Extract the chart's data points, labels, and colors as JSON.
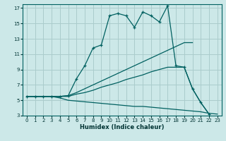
{
  "xlabel": "Humidex (Indice chaleur)",
  "bg_color": "#cce8e8",
  "grid_color": "#aacccc",
  "line_color": "#006060",
  "xlim": [
    -0.5,
    23.5
  ],
  "ylim": [
    3,
    17.5
  ],
  "xticks": [
    0,
    1,
    2,
    3,
    4,
    5,
    6,
    7,
    8,
    9,
    10,
    11,
    12,
    13,
    14,
    15,
    16,
    17,
    18,
    19,
    20,
    21,
    22,
    23
  ],
  "yticks": [
    3,
    5,
    7,
    9,
    11,
    13,
    15,
    17
  ],
  "line_max_x": [
    0,
    1,
    2,
    3,
    4,
    5,
    6,
    7,
    8,
    9,
    10,
    11,
    12,
    13,
    14,
    15,
    16,
    17,
    18,
    19,
    20,
    21,
    22
  ],
  "line_max_y": [
    5.5,
    5.5,
    5.5,
    5.5,
    5.5,
    5.6,
    7.8,
    9.5,
    11.8,
    12.2,
    16.0,
    16.3,
    16.0,
    14.5,
    16.5,
    16.0,
    15.2,
    17.3,
    9.5,
    9.3,
    6.5,
    4.7,
    3.2
  ],
  "line_upper_x": [
    0,
    1,
    2,
    3,
    4,
    5,
    6,
    7,
    8,
    9,
    10,
    11,
    12,
    13,
    14,
    15,
    16,
    17,
    18,
    19,
    20
  ],
  "line_upper_y": [
    5.5,
    5.5,
    5.5,
    5.5,
    5.5,
    5.6,
    6.0,
    6.5,
    7.0,
    7.5,
    8.0,
    8.5,
    9.0,
    9.5,
    10.0,
    10.5,
    11.0,
    11.5,
    12.0,
    12.5,
    12.5
  ],
  "line_lower_x": [
    0,
    1,
    2,
    3,
    4,
    5,
    6,
    7,
    8,
    9,
    10,
    11,
    12,
    13,
    14,
    15,
    16,
    17,
    18,
    19,
    20,
    21,
    22
  ],
  "line_lower_y": [
    5.5,
    5.5,
    5.5,
    5.5,
    5.5,
    5.5,
    5.8,
    6.0,
    6.3,
    6.7,
    7.0,
    7.3,
    7.7,
    8.0,
    8.3,
    8.7,
    9.0,
    9.3,
    9.3,
    9.3,
    6.5,
    4.7,
    3.2
  ],
  "line_min_x": [
    0,
    1,
    2,
    3,
    4,
    5,
    6,
    7,
    8,
    9,
    10,
    11,
    12,
    13,
    14,
    15,
    16,
    17,
    18,
    19,
    20,
    21,
    22,
    23
  ],
  "line_min_y": [
    5.5,
    5.5,
    5.5,
    5.5,
    5.3,
    5.0,
    4.9,
    4.8,
    4.7,
    4.6,
    4.5,
    4.4,
    4.3,
    4.2,
    4.2,
    4.1,
    4.0,
    3.9,
    3.8,
    3.7,
    3.6,
    3.5,
    3.3,
    3.2
  ]
}
